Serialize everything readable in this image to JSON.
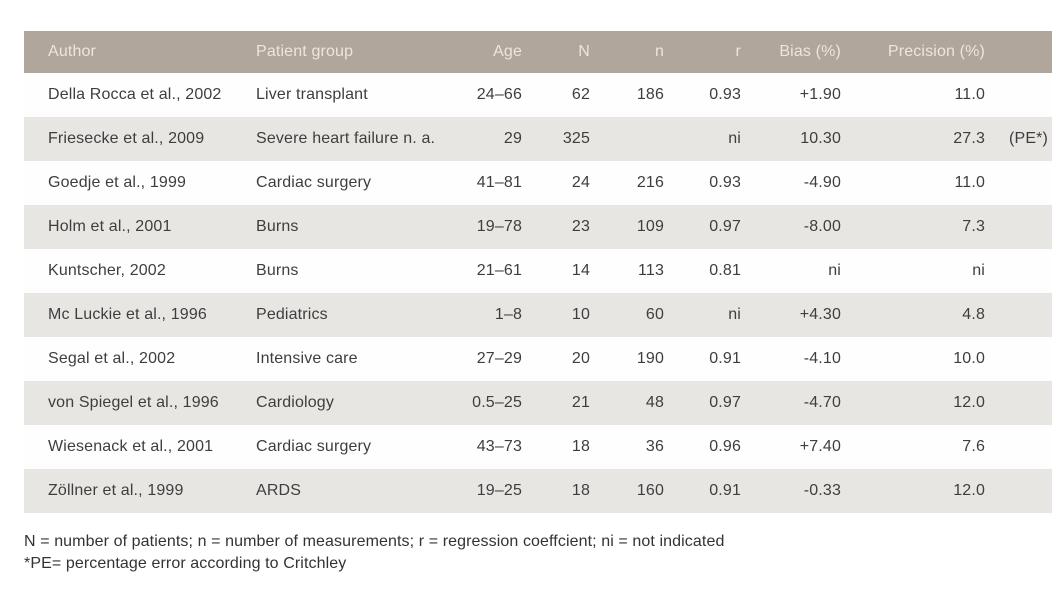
{
  "colors": {
    "page_bg": "#ffffff",
    "header_bg": "#b0a69c",
    "header_text": "#ece6df",
    "row_shaded": "#e7e6e2",
    "row_plain": "#fefefe",
    "body_text": "#3e3e3e",
    "footnote_text": "#333333"
  },
  "table": {
    "columns": [
      {
        "label": "Author",
        "align": "left"
      },
      {
        "label": "Patient group",
        "align": "left"
      },
      {
        "label": "Age",
        "align": "right"
      },
      {
        "label": "N",
        "align": "right"
      },
      {
        "label": "n",
        "align": "right"
      },
      {
        "label": "r",
        "align": "right"
      },
      {
        "label": "Bias (%)",
        "align": "right"
      },
      {
        "label": "Precision (%)",
        "align": "right"
      },
      {
        "label": "",
        "align": "right"
      }
    ],
    "rows": [
      [
        "Della Rocca et al., 2002",
        "Liver transplant",
        "24–66",
        "62",
        "186",
        "0.93",
        "+1.90",
        "11.0",
        ""
      ],
      [
        "Friesecke et al., 2009",
        "Severe heart failure n. a.",
        "29",
        "325",
        "",
        "ni",
        "10.30",
        "27.3",
        "(PE*)"
      ],
      [
        "Goedje et al., 1999",
        "Cardiac surgery",
        "41–81",
        "24",
        "216",
        "0.93",
        "-4.90",
        "11.0",
        ""
      ],
      [
        "Holm et al., 2001",
        "Burns",
        "19–78",
        "23",
        "109",
        "0.97",
        "-8.00",
        "7.3",
        ""
      ],
      [
        "Kuntscher, 2002",
        "Burns",
        "21–61",
        "14",
        "113",
        "0.81",
        "ni",
        "ni",
        ""
      ],
      [
        "Mc Luckie et al., 1996",
        "Pediatrics",
        "1–8",
        "10",
        "60",
        "ni",
        "+4.30",
        "4.8",
        ""
      ],
      [
        "Segal et al., 2002",
        "Intensive care",
        "27–29",
        "20",
        "190",
        "0.91",
        "-4.10",
        "10.0",
        ""
      ],
      [
        "von Spiegel et al., 1996",
        "Cardiology",
        "0.5–25",
        "21",
        "48",
        "0.97",
        "-4.70",
        "12.0",
        ""
      ],
      [
        "Wiesenack et al., 2001",
        "Cardiac surgery",
        "43–73",
        "18",
        "36",
        "0.96",
        "+7.40",
        "7.6",
        ""
      ],
      [
        "Zöllner et al., 1999",
        "ARDS",
        "19–25",
        "18",
        "160",
        "0.91",
        "-0.33",
        "12.0",
        ""
      ]
    ]
  },
  "footnotes": {
    "line1": "N = number of patients; n = number of measurements; r = regression coeffcient; ni = not indicated",
    "line2": "*PE= percentage error according to Critchley"
  }
}
